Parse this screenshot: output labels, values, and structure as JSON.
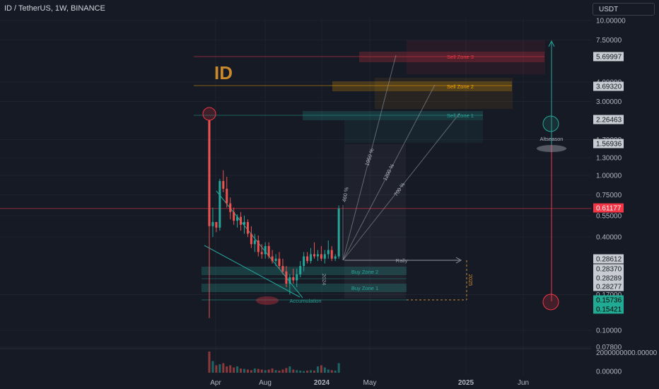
{
  "header": {
    "symbol_line": "ID / TetherUS, 1W, BINANCE",
    "currency": "USDT",
    "logo_text": "ID"
  },
  "colors": {
    "bg": "#161a25",
    "up": "#26a69a",
    "down": "#ef5350",
    "accent": "#c8892d",
    "grid": "#1f2330"
  },
  "chart_data": {
    "type": "candlestick",
    "scale": "log",
    "y_ticks": [
      "10.00000",
      "7.50000",
      "4.00000",
      "3.00000",
      "1.70000",
      "1.30000",
      "1.00000",
      "0.75000",
      "0.55000",
      "0.40000",
      "0.17000",
      "0.10000",
      "0.07800",
      "0.00000"
    ],
    "y_tick_values": [
      10,
      7.5,
      4,
      3,
      1.7,
      1.3,
      1.0,
      0.75,
      0.55,
      0.4,
      0.17,
      0.1,
      0.078,
      0
    ],
    "volume_axis_label": "2000000000.00000",
    "price_labels": [
      {
        "text": "5.69997",
        "value": 5.69997,
        "color": "#c9ccd3",
        "textColor": "#161a25"
      },
      {
        "text": "3.69320",
        "value": 3.6932,
        "color": "#c9ccd3",
        "textColor": "#161a25"
      },
      {
        "text": "2.26463",
        "value": 2.26463,
        "color": "#c9ccd3",
        "textColor": "#161a25"
      },
      {
        "text": "1.56936",
        "value": 1.56936,
        "color": "#c9ccd3",
        "textColor": "#161a25"
      },
      {
        "text": "0.61177",
        "value": 0.61177,
        "color": "#f23645",
        "textColor": "#ffffff"
      },
      {
        "text": "0.28612",
        "value": 0.28612,
        "color": "#c9ccd3",
        "textColor": "#161a25"
      },
      {
        "text": "0.28370",
        "value": 0.2837,
        "color": "#c9ccd3",
        "textColor": "#161a25"
      },
      {
        "text": "0.28289",
        "value": 0.28289,
        "color": "#c9ccd3",
        "textColor": "#161a25"
      },
      {
        "text": "0.28277",
        "value": 0.28277,
        "color": "#c9ccd3",
        "textColor": "#161a25"
      },
      {
        "text": "0.15736",
        "value": 0.15736,
        "color": "#22ab94",
        "textColor": "#000000"
      },
      {
        "text": "0.15421",
        "value": 0.15421,
        "color": "#22ab94",
        "textColor": "#000000"
      }
    ],
    "x_labels": [
      "Apr",
      "Aug",
      "2024",
      "May",
      "2025",
      "Jun"
    ],
    "zones": [
      {
        "label": "Sell Zone 3",
        "color": "#f23645",
        "price": 5.69997
      },
      {
        "label": "Sell Zone 2",
        "color": "#f7a600",
        "price": 3.6932
      },
      {
        "label": "Sell Zone 1",
        "color": "#26a69a",
        "price": 2.26463
      },
      {
        "label": "Buy Zone 2",
        "color": "#26a69a",
        "price": 0.2837
      },
      {
        "label": "Buy Zone 1",
        "color": "#26a69a",
        "price": 0.23
      }
    ],
    "annotations": [
      "Rally",
      "Accumulation",
      "Altseason",
      "460 %",
      "700 %",
      "1200 %",
      "1950 %",
      "2024",
      "2025"
    ],
    "candles": [
      [
        2.26,
        2.26,
        0.12,
        0.47
      ],
      [
        0.47,
        0.62,
        0.4,
        0.5
      ],
      [
        0.5,
        0.5,
        0.43,
        0.46
      ],
      [
        0.46,
        0.95,
        0.44,
        0.92
      ],
      [
        0.92,
        1.08,
        0.78,
        0.82
      ],
      [
        0.82,
        0.98,
        0.62,
        0.66
      ],
      [
        0.66,
        0.72,
        0.52,
        0.58
      ],
      [
        0.58,
        0.62,
        0.48,
        0.51
      ],
      [
        0.51,
        0.56,
        0.46,
        0.54
      ],
      [
        0.54,
        0.58,
        0.44,
        0.48
      ],
      [
        0.48,
        0.55,
        0.42,
        0.5
      ],
      [
        0.5,
        0.52,
        0.4,
        0.42
      ],
      [
        0.42,
        0.47,
        0.34,
        0.36
      ],
      [
        0.36,
        0.42,
        0.32,
        0.38
      ],
      [
        0.38,
        0.41,
        0.3,
        0.32
      ],
      [
        0.32,
        0.36,
        0.29,
        0.31
      ],
      [
        0.31,
        0.37,
        0.29,
        0.35
      ],
      [
        0.35,
        0.37,
        0.29,
        0.3
      ],
      [
        0.3,
        0.33,
        0.27,
        0.28
      ],
      [
        0.28,
        0.31,
        0.26,
        0.29
      ],
      [
        0.29,
        0.32,
        0.25,
        0.26
      ],
      [
        0.26,
        0.29,
        0.23,
        0.24
      ],
      [
        0.24,
        0.26,
        0.19,
        0.2
      ],
      [
        0.2,
        0.23,
        0.17,
        0.22
      ],
      [
        0.22,
        0.25,
        0.2,
        0.21
      ],
      [
        0.21,
        0.25,
        0.19,
        0.23
      ],
      [
        0.23,
        0.28,
        0.22,
        0.26
      ],
      [
        0.26,
        0.32,
        0.24,
        0.3
      ],
      [
        0.3,
        0.32,
        0.27,
        0.28
      ],
      [
        0.28,
        0.34,
        0.27,
        0.31
      ],
      [
        0.31,
        0.37,
        0.29,
        0.3
      ],
      [
        0.3,
        0.33,
        0.28,
        0.31
      ],
      [
        0.31,
        0.35,
        0.28,
        0.29
      ],
      [
        0.29,
        0.33,
        0.27,
        0.31
      ],
      [
        0.31,
        0.38,
        0.29,
        0.33
      ],
      [
        0.33,
        0.35,
        0.28,
        0.29
      ],
      [
        0.29,
        0.31,
        0.28,
        0.3
      ],
      [
        0.3,
        0.64,
        0.29,
        0.61
      ]
    ],
    "volumes": [
      1.0,
      0.55,
      0.35,
      0.4,
      0.45,
      0.3,
      0.35,
      0.25,
      0.3,
      0.2,
      0.18,
      0.15,
      0.12,
      0.2,
      0.18,
      0.15,
      0.12,
      0.15,
      0.2,
      0.12,
      0.1,
      0.15,
      0.22,
      0.3,
      0.15,
      0.12,
      0.1,
      0.08,
      0.1,
      0.12,
      0.1,
      0.3,
      0.35,
      0.25,
      0.15,
      0.12,
      0.1,
      0.45
    ]
  }
}
